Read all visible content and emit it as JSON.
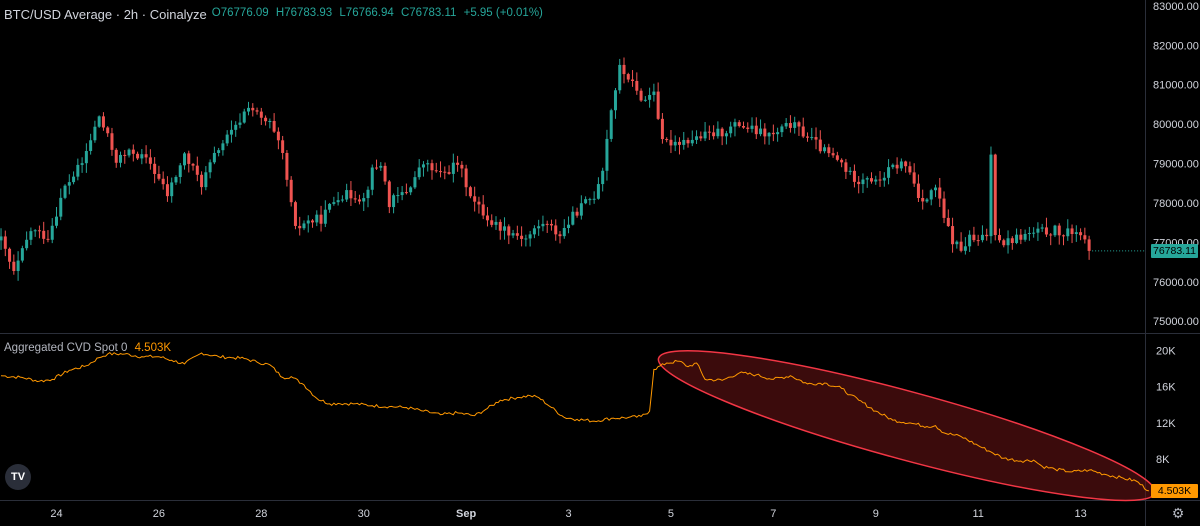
{
  "header": {
    "symbol": "BTC/USD Average · 2h · Coinalyze",
    "open": "O76776.09",
    "high": "H76783.93",
    "low": "L76766.94",
    "close": "C76783.11",
    "change": "+5.95 (+0.01%)"
  },
  "indicator": {
    "name": "Aggregated CVD Spot 0",
    "value": "4.503K"
  },
  "price_tag": "76783.11",
  "cvd_tag": "4.503K",
  "logo_text": "TV",
  "colors": {
    "up": "#26a69a",
    "down": "#ef5350",
    "cvd_line": "#ff9800",
    "ellipse_stroke": "#f23645",
    "ellipse_fill": "#6b1416",
    "price_tag_bg": "#26a69a",
    "cvd_tag_bg": "#ff9800"
  },
  "chart_data": [
    {
      "type": "candlestick",
      "title": "",
      "y_ticks": [
        "75000.00",
        "76000.00",
        "77000.00",
        "78000.00",
        "79000.00",
        "80000.00",
        "81000.00",
        "82000.00",
        "83000.00"
      ],
      "ylim": [
        74700,
        83150
      ],
      "x_tick_labels": [
        "24",
        "26",
        "28",
        "30",
        "Sep",
        "3",
        "5",
        "7",
        "9",
        "11",
        "13"
      ],
      "x_tick_positions": [
        0,
        24,
        48,
        72,
        96,
        120,
        144,
        168,
        192,
        216,
        240
      ],
      "candle_start_index": -13,
      "candle_step": 1,
      "close_anchors": [
        [
          -13,
          77050
        ],
        [
          -10,
          76200
        ],
        [
          -6,
          77300
        ],
        [
          -2,
          77150
        ],
        [
          2,
          78400
        ],
        [
          6,
          79000
        ],
        [
          10,
          80200
        ],
        [
          14,
          79100
        ],
        [
          18,
          79300
        ],
        [
          22,
          79000
        ],
        [
          26,
          78200
        ],
        [
          30,
          79200
        ],
        [
          34,
          78500
        ],
        [
          38,
          79400
        ],
        [
          42,
          79900
        ],
        [
          45,
          80500
        ],
        [
          48,
          80100
        ],
        [
          50,
          80000
        ],
        [
          53,
          79200
        ],
        [
          56,
          77300
        ],
        [
          58,
          77500
        ],
        [
          62,
          77600
        ],
        [
          66,
          78200
        ],
        [
          70,
          78200
        ],
        [
          72,
          78100
        ],
        [
          74,
          78800
        ],
        [
          76,
          79000
        ],
        [
          78,
          78000
        ],
        [
          82,
          78300
        ],
        [
          86,
          79000
        ],
        [
          90,
          78700
        ],
        [
          94,
          79000
        ],
        [
          98,
          78000
        ],
        [
          102,
          77500
        ],
        [
          106,
          77300
        ],
        [
          110,
          77100
        ],
        [
          114,
          77500
        ],
        [
          118,
          77200
        ],
        [
          122,
          77800
        ],
        [
          126,
          78200
        ],
        [
          128,
          78900
        ],
        [
          130,
          80400
        ],
        [
          132,
          81400
        ],
        [
          134,
          81200
        ],
        [
          136,
          80800
        ],
        [
          138,
          80600
        ],
        [
          140,
          80900
        ],
        [
          142,
          79500
        ],
        [
          144,
          79550
        ],
        [
          148,
          79600
        ],
        [
          152,
          79700
        ],
        [
          156,
          79800
        ],
        [
          160,
          80000
        ],
        [
          164,
          79800
        ],
        [
          168,
          79700
        ],
        [
          172,
          80000
        ],
        [
          176,
          79700
        ],
        [
          180,
          79300
        ],
        [
          184,
          79000
        ],
        [
          186,
          78700
        ],
        [
          188,
          78600
        ],
        [
          190,
          78700
        ],
        [
          192,
          78500
        ],
        [
          194,
          78700
        ],
        [
          196,
          78900
        ],
        [
          198,
          79000
        ],
        [
          200,
          78800
        ],
        [
          202,
          78200
        ],
        [
          204,
          78100
        ],
        [
          206,
          78400
        ],
        [
          208,
          77600
        ],
        [
          210,
          77050
        ],
        [
          212,
          76800
        ],
        [
          214,
          77100
        ],
        [
          216,
          77000
        ],
        [
          218,
          77200
        ],
        [
          219,
          79200
        ],
        [
          220,
          77300
        ],
        [
          222,
          77000
        ],
        [
          226,
          77150
        ],
        [
          230,
          77250
        ],
        [
          234,
          77300
        ],
        [
          236,
          77150
        ],
        [
          238,
          77300
        ],
        [
          240,
          77250
        ],
        [
          241,
          76950
        ],
        [
          242,
          76783
        ]
      ],
      "last_price": 76783.11
    },
    {
      "type": "line",
      "series": [
        {
          "values_ref": "cvd"
        }
      ],
      "y_ticks": [
        "8K",
        "12K",
        "16K",
        "20K"
      ],
      "ylim": [
        3500,
        21800
      ],
      "points": [
        [
          -13,
          17200
        ],
        [
          -8,
          17000
        ],
        [
          -4,
          16600
        ],
        [
          -1,
          16800
        ],
        [
          3,
          17800
        ],
        [
          7,
          18300
        ],
        [
          10,
          19200
        ],
        [
          12,
          19600
        ],
        [
          16,
          19600
        ],
        [
          20,
          19300
        ],
        [
          24,
          19300
        ],
        [
          27,
          18900
        ],
        [
          30,
          18500
        ],
        [
          34,
          19700
        ],
        [
          38,
          19300
        ],
        [
          41,
          19200
        ],
        [
          44,
          19100
        ],
        [
          47,
          18700
        ],
        [
          50,
          18400
        ],
        [
          53,
          17000
        ],
        [
          55,
          17100
        ],
        [
          58,
          16200
        ],
        [
          61,
          14700
        ],
        [
          64,
          14100
        ],
        [
          66,
          14150
        ],
        [
          70,
          14100
        ],
        [
          74,
          13900
        ],
        [
          78,
          13800
        ],
        [
          82,
          13700
        ],
        [
          86,
          13300
        ],
        [
          90,
          12900
        ],
        [
          94,
          13100
        ],
        [
          98,
          12800
        ],
        [
          101,
          13600
        ],
        [
          104,
          14500
        ],
        [
          108,
          14800
        ],
        [
          111,
          15000
        ],
        [
          113,
          14800
        ],
        [
          116,
          13700
        ],
        [
          119,
          12600
        ],
        [
          122,
          12400
        ],
        [
          126,
          12200
        ],
        [
          130,
          12500
        ],
        [
          134,
          12600
        ],
        [
          137,
          12700
        ],
        [
          139,
          13300
        ],
        [
          140,
          17900
        ],
        [
          143,
          18600
        ],
        [
          146,
          18800
        ],
        [
          148,
          18200
        ],
        [
          150,
          18600
        ],
        [
          152,
          16800
        ],
        [
          156,
          16700
        ],
        [
          160,
          17500
        ],
        [
          164,
          17300
        ],
        [
          168,
          16800
        ],
        [
          172,
          17200
        ],
        [
          176,
          16300
        ],
        [
          180,
          16400
        ],
        [
          184,
          15800
        ],
        [
          186,
          15100
        ],
        [
          188,
          14500
        ],
        [
          192,
          13300
        ],
        [
          196,
          12300
        ],
        [
          200,
          12000
        ],
        [
          204,
          11600
        ],
        [
          206,
          11700
        ],
        [
          208,
          10900
        ],
        [
          212,
          10500
        ],
        [
          216,
          9500
        ],
        [
          219,
          8800
        ],
        [
          222,
          8100
        ],
        [
          226,
          7800
        ],
        [
          229,
          7900
        ],
        [
          231,
          7200
        ],
        [
          234,
          6900
        ],
        [
          238,
          6600
        ],
        [
          242,
          6800
        ],
        [
          246,
          6300
        ],
        [
          250,
          5900
        ],
        [
          253,
          5600
        ],
        [
          256,
          4503
        ]
      ],
      "last_value": 4503,
      "annotation": "ellipse highlighting the decline in CVD from the Sep 4 peak to the latest value"
    }
  ]
}
